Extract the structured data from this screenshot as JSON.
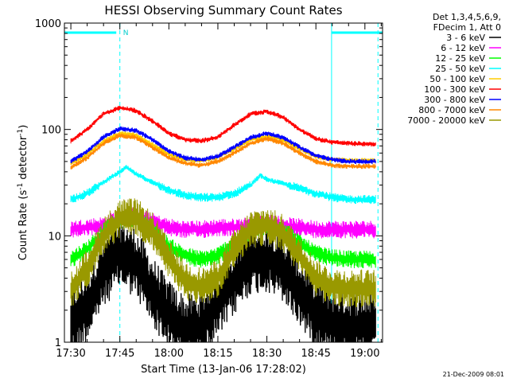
{
  "chart_data": {
    "type": "line",
    "title": "HESSI Observing Summary Count Rates",
    "xlabel": "Start Time (13-Jan-06 17:28:02)",
    "ylabel_main": "Count Rate (s",
    "ylabel_sup1": "-1",
    "ylabel_mid": " detector",
    "ylabel_sup2": "-1",
    "ylabel_end": ")",
    "x_tick_labels": [
      "17:30",
      "17:45",
      "18:00",
      "18:15",
      "18:30",
      "18:45",
      "19:00"
    ],
    "x_tick_minutes": [
      0,
      15,
      30,
      45,
      60,
      75,
      90
    ],
    "x_range_minutes": [
      -1.97,
      95.4
    ],
    "y_tick_labels": [
      "1",
      "10",
      "100",
      "1000"
    ],
    "y_tick_values": [
      1,
      10,
      100,
      1000
    ],
    "ylim": [
      1,
      1000
    ],
    "yscale": "log",
    "legend_header": [
      "Det 1,3,4,5,6,9,",
      "FDecim 1, Att 0"
    ],
    "legend_position": "right",
    "flag_label": "N",
    "flag_bars_minutes": [
      [
        -1.97,
        13.9
      ],
      [
        79.8,
        95.4
      ]
    ],
    "flag_vlines_minutes": [
      -1.97,
      15.0,
      79.8,
      94.0
    ],
    "timestamp": "21-Dec-2009 08:01",
    "series": [
      {
        "name": "3 - 6 keV",
        "color": "#000000",
        "x": [
          0,
          5,
          10,
          15,
          20,
          25,
          30,
          35,
          40,
          45,
          50,
          55,
          60,
          65,
          70,
          75,
          80,
          85,
          90,
          93
        ],
        "y": [
          1.5,
          2.2,
          4.5,
          7.0,
          5.5,
          3.0,
          1.8,
          1.3,
          1.4,
          2.3,
          3.8,
          6.0,
          6.3,
          5.0,
          3.0,
          1.9,
          1.5,
          1.4,
          1.4,
          1.4
        ]
      },
      {
        "name": "6 - 12 keV",
        "color": "#ff00ff",
        "x": [
          0,
          5,
          10,
          15,
          20,
          25,
          30,
          35,
          40,
          45,
          50,
          55,
          60,
          65,
          70,
          75,
          80,
          85,
          90,
          93
        ],
        "y": [
          11.5,
          12.0,
          12.5,
          15.0,
          15.5,
          13.5,
          12.0,
          11.5,
          11.5,
          12.0,
          12.0,
          12.5,
          13.5,
          12.5,
          12.0,
          11.5,
          11.5,
          11.5,
          11.5,
          11.5
        ]
      },
      {
        "name": "12 - 25 keV",
        "color": "#00ff00",
        "x": [
          0,
          5,
          10,
          15,
          20,
          25,
          30,
          35,
          40,
          45,
          50,
          55,
          60,
          65,
          70,
          75,
          80,
          85,
          90,
          93
        ],
        "y": [
          6.0,
          7.5,
          11.0,
          14.0,
          14.5,
          11.5,
          8.0,
          6.5,
          6.0,
          6.5,
          8.5,
          11.0,
          12.5,
          11.5,
          8.5,
          6.8,
          6.2,
          6.0,
          6.0,
          6.0
        ]
      },
      {
        "name": "25 - 50 keV",
        "color": "#00ffff",
        "x": [
          0,
          5,
          10,
          15,
          17,
          20,
          25,
          30,
          35,
          40,
          45,
          50,
          55,
          58,
          60,
          65,
          70,
          75,
          80,
          85,
          90,
          93
        ],
        "y": [
          22.0,
          25.0,
          32.0,
          40.0,
          44.0,
          38.0,
          32.0,
          27.0,
          24.0,
          23.0,
          23.0,
          25.0,
          30.0,
          37.0,
          34.0,
          31.0,
          28.0,
          25.0,
          23.0,
          22.0,
          22.0,
          22.0
        ]
      },
      {
        "name": "50 - 100 keV",
        "color": "#ffcc00",
        "x": [
          0,
          5,
          10,
          15,
          20,
          25,
          30,
          35,
          40,
          45,
          50,
          55,
          60,
          65,
          70,
          75,
          80,
          85,
          90,
          93
        ],
        "y": [
          48.0,
          58.0,
          78.0,
          92.0,
          88.0,
          72.0,
          58.0,
          52.0,
          51.0,
          55.0,
          66.0,
          80.0,
          86.0,
          80.0,
          66.0,
          56.0,
          52.0,
          51.0,
          51.0,
          51.0
        ]
      },
      {
        "name": "100 - 300 keV",
        "color": "#ff0000",
        "x": [
          0,
          5,
          10,
          15,
          20,
          25,
          30,
          35,
          40,
          45,
          50,
          55,
          60,
          65,
          70,
          75,
          80,
          85,
          90,
          93
        ],
        "y": [
          78.0,
          100.0,
          140.0,
          160.0,
          150.0,
          120.0,
          92.0,
          80.0,
          78.0,
          85.0,
          110.0,
          140.0,
          148.0,
          130.0,
          100.0,
          82.0,
          76.0,
          74.0,
          73.0,
          73.0
        ]
      },
      {
        "name": "300 - 800 keV",
        "color": "#0000ff",
        "x": [
          0,
          5,
          10,
          15,
          20,
          25,
          30,
          35,
          40,
          45,
          50,
          55,
          60,
          65,
          70,
          75,
          80,
          85,
          90,
          93
        ],
        "y": [
          50.0,
          62.0,
          85.0,
          102.0,
          98.0,
          80.0,
          62.0,
          54.0,
          52.0,
          56.0,
          68.0,
          84.0,
          92.0,
          84.0,
          68.0,
          57.0,
          52.0,
          50.0,
          50.0,
          50.0
        ]
      },
      {
        "name": "800 - 7000 keV",
        "color": "#ff8800",
        "x": [
          0,
          5,
          10,
          15,
          20,
          25,
          30,
          35,
          40,
          45,
          50,
          55,
          60,
          65,
          70,
          75,
          80,
          85,
          90,
          93
        ],
        "y": [
          44.0,
          54.0,
          74.0,
          88.0,
          84.0,
          68.0,
          54.0,
          48.0,
          46.0,
          50.0,
          60.0,
          74.0,
          82.0,
          74.0,
          60.0,
          50.0,
          46.0,
          45.0,
          45.0,
          45.0
        ]
      },
      {
        "name": "7000 - 20000 keV",
        "color": "#999900",
        "x": [
          0,
          5,
          10,
          15,
          20,
          25,
          30,
          35,
          40,
          45,
          50,
          55,
          60,
          65,
          70,
          75,
          80,
          85,
          90,
          93
        ],
        "y": [
          3.0,
          5.0,
          10.0,
          14.5,
          15.0,
          11.0,
          6.0,
          3.8,
          3.3,
          4.0,
          7.5,
          11.5,
          12.5,
          10.5,
          6.5,
          4.0,
          3.3,
          3.2,
          3.2,
          3.2
        ]
      }
    ]
  }
}
